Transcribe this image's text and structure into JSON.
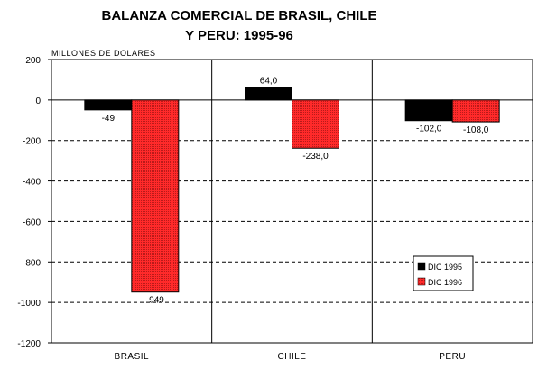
{
  "chart_data": {
    "type": "bar",
    "title": [
      "BALANZA COMERCIAL DE BRASIL, CHILE",
      "Y PERU: 1995-96"
    ],
    "ylabel": "MILLONES DE DOLARES",
    "categories": [
      "BRASIL",
      "CHILE",
      "PERU"
    ],
    "series": [
      {
        "name": "DIC 1995",
        "values": [
          -49,
          64.0,
          -102.0
        ],
        "labels": [
          "-49",
          "64,0",
          "-102,0"
        ],
        "color": "#000000"
      },
      {
        "name": "DIC 1996",
        "values": [
          -949,
          -238.0,
          -108.0
        ],
        "labels": [
          "-949",
          "-238,0",
          "-108,0"
        ],
        "color": "#ff2a2a"
      }
    ],
    "ylim": [
      -1200,
      200
    ],
    "yticks": [
      200,
      0,
      -200,
      -400,
      -600,
      -800,
      -1000,
      -1200
    ],
    "ytick_labels": [
      "200",
      "0",
      "-200",
      "-400",
      "-600",
      "-800",
      "-1000",
      "-1200"
    ],
    "grid": "dashed-horizontal",
    "legend_position": "bottom-right"
  }
}
